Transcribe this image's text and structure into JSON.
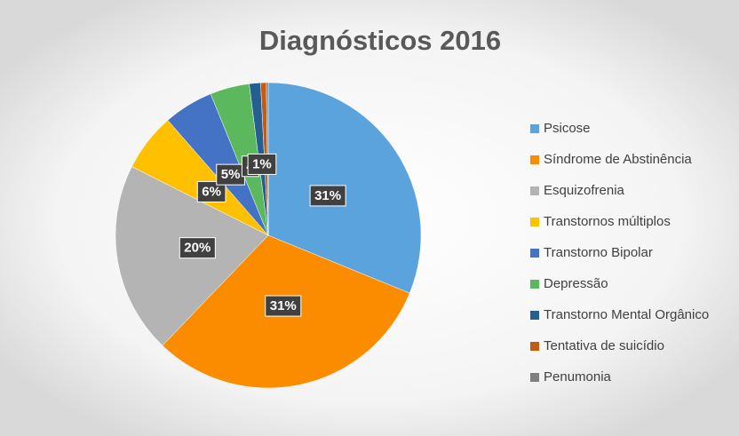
{
  "chart_data": {
    "type": "pie",
    "title": "Diagnósticos 2016",
    "categories": [
      "Psicose",
      "Síndrome de Abstinência",
      "Esquizofrenia",
      "Transtornos múltiplos",
      "Transtorno Bipolar",
      "Depressão",
      "Transtorno Mental Orgânico",
      "Tentativa de suicídio",
      "Penumonia"
    ],
    "values": [
      31.4,
      31.2,
      20.4,
      6.2,
      5.3,
      4.2,
      1.2,
      0.6,
      0.2
    ],
    "value_labels": [
      "31%",
      "31%",
      "20%",
      "6%",
      "5%",
      "4",
      "1%",
      null,
      null
    ],
    "colors": [
      "#5ba3dd",
      "#fb8c00",
      "#b4b4b4",
      "#ffc000",
      "#4472c4",
      "#5cb85c",
      "#255e91",
      "#c55a11",
      "#7f7f7f"
    ],
    "legend": "right"
  }
}
